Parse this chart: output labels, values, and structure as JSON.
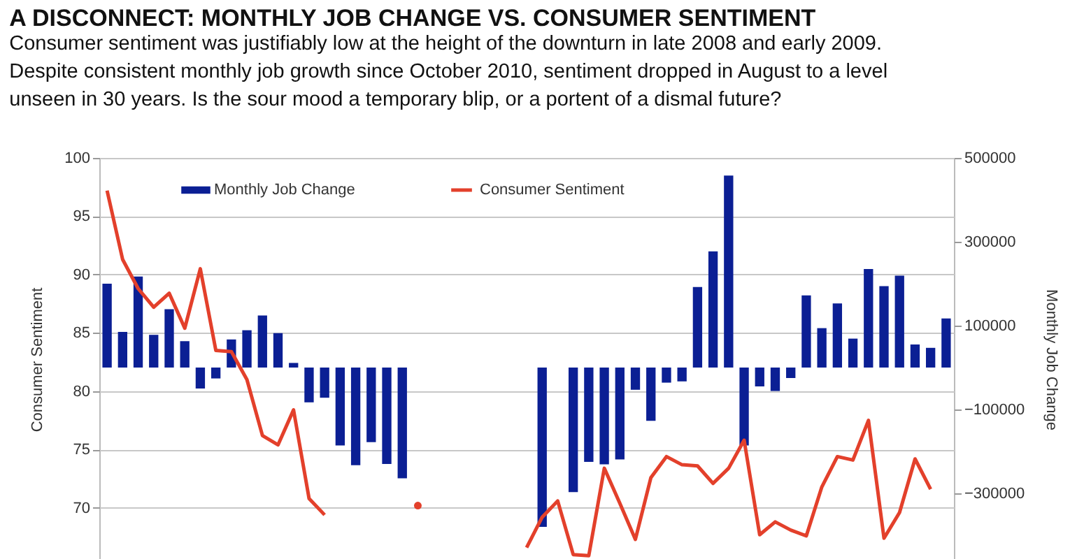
{
  "chart_data": {
    "type": "bar",
    "title": "A DISCONNECT: MONTHLY JOB CHANGE VS. CONSUMER SENTIMENT",
    "subtitle": "Consumer sentiment was justifiably low at the height of the downturn in late 2008 and early 2009.\nDespite consistent monthly job growth since October 2010, sentiment dropped in August to a level\nunseen in 30 years. Is the sour mood a temporary blip, or a portent of a dismal future?",
    "categories": [
      null,
      null,
      null,
      null,
      null,
      null,
      null,
      null,
      null,
      null,
      null,
      null,
      null,
      null,
      null,
      null,
      null,
      null,
      null,
      null,
      null,
      null,
      null,
      null,
      null,
      null,
      null,
      null,
      null,
      null,
      null,
      null,
      null,
      null,
      null,
      null,
      null,
      null,
      null,
      null,
      null,
      null,
      null,
      null,
      null,
      null,
      null,
      null,
      null,
      null,
      null,
      null,
      null,
      null,
      null
    ],
    "series": [
      {
        "name": "Monthly Job Change",
        "axis": "y2",
        "color": "#0b1f94",
        "values": [
          200000,
          85000,
          217000,
          78000,
          139000,
          63000,
          -50000,
          -26000,
          67000,
          89000,
          124000,
          82000,
          11000,
          -83000,
          -72000,
          -186000,
          -233000,
          -178000,
          -230000,
          -264000,
          null,
          null,
          null,
          null,
          null,
          null,
          null,
          null,
          -380000,
          null,
          -297000,
          -225000,
          -231000,
          -219000,
          -53000,
          -127000,
          -36000,
          -33000,
          192000,
          277000,
          458000,
          -186000,
          -45000,
          -56000,
          -25000,
          172000,
          94000,
          153000,
          69000,
          235000,
          194000,
          219000,
          55000,
          47000,
          117000
        ]
      },
      {
        "name": "Consumer Sentiment",
        "type": "line",
        "color": "#e3402b",
        "values": [
          97.2,
          91.3,
          88.8,
          87.2,
          88.4,
          85.4,
          90.5,
          83.5,
          83.4,
          81.0,
          76.2,
          75.4,
          78.4,
          70.8,
          69.4,
          null,
          null,
          null,
          null,
          null,
          70.2,
          null,
          null,
          null,
          null,
          null,
          null,
          66.6,
          69.2,
          70.6,
          66.0,
          65.9,
          73.4,
          70.4,
          67.3,
          72.6,
          74.4,
          73.7,
          73.6,
          72.1,
          73.4,
          75.8,
          67.7,
          68.8,
          68.1,
          67.6,
          71.8,
          74.4,
          74.1,
          77.5,
          67.4,
          69.6,
          74.2,
          71.6,
          null
        ]
      }
    ],
    "ylabel": "Consumer Sentiment",
    "y2label": "Monthly Job Change",
    "ylim": [
      65.5,
      100
    ],
    "yticks": [
      70,
      75,
      80,
      85,
      90,
      95,
      100
    ],
    "y2lim": [
      -460000,
      500000
    ],
    "y2ticks": [
      -300000,
      -100000,
      100000,
      300000,
      500000
    ],
    "grid": "y",
    "legend": "top",
    "marker": "none",
    "line_style": "solid"
  }
}
